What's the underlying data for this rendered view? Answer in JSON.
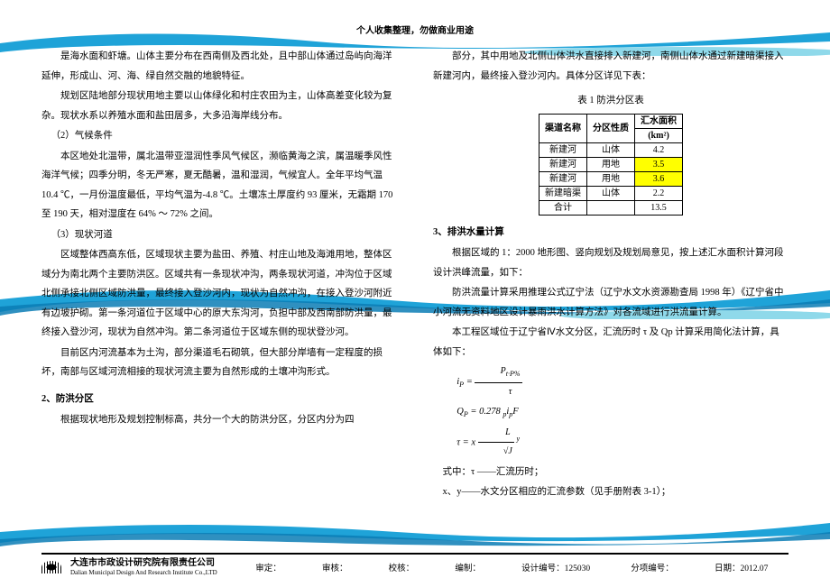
{
  "header": "个人收集整理，勿做商业用途",
  "left": {
    "p1": "是海水面和虾塘。山体主要分布在西南侧及西北处，且中部山体通过岛屿向海洋延伸，形成山、河、海、绿自然交融的地貌特征。",
    "p2": "规划区陆地部分现状用地主要以山体绿化和村庄农田为主，山体高差变化较为复杂。现状水系以养殖水面和盐田居多，大多沿海岸线分布。",
    "s2": "（2）气候条件",
    "p3": "本区地处北温带，属北温带亚湿润性季风气候区，濒临黄海之滨，属温暖季风性海洋气候；四季分明，冬无严寒，夏无酷暑，温和湿润，气候宜人。全年平均气温 10.4 ℃，一月份温度最低，平均气温为-4.8 ℃。土壤冻土厚度约 93 厘米，无霜期 170 至 190 天，相对湿度在 64% ～ 72% 之间。",
    "s3": "（3）现状河道",
    "p4": "区域整体西高东低，区域现状主要为盐田、养殖、村庄山地及海滩用地，整体区域分为南北两个主要防洪区。区域共有一条现状冲沟，两条现状河道，冲沟位于区域北侧承接北侧区域防洪量，最终接入登沙河内，现状为自然冲沟，在接入登沙河附近有边坡护砌。第一条河道位于区域中心的原大东沟河，负担中部及西南部防洪量，最终接入登沙河，现状为自然冲沟。第二条河道位于区域东侧的现状登沙河。",
    "p5": "目前区内河流基本为土沟，部分渠道毛石砌筑，但大部分岸墙有一定程度的损坏，南部与区域河流相接的现状河流主要为自然形成的土壤冲沟形式。",
    "h2": "2、防洪分区",
    "p6": "根据现状地形及规划控制标高，共分一个大的防洪分区，分区内分为四"
  },
  "right": {
    "p1": "部分，其中用地及北侧山体洪水直接排入新建河，南侧山体水通过新建暗渠接入新建河内，最终接入登沙河内。具体分区详见下表：",
    "tcaption": "表 1 防洪分区表",
    "th1": "渠道名称",
    "th2": "分区性质",
    "th3": "汇水面积",
    "th3u": "(km²)",
    "rows": [
      [
        "新建河",
        "山体",
        "4.2",
        ""
      ],
      [
        "新建河",
        "用地",
        "3.5",
        "hl1"
      ],
      [
        "新建河",
        "用地",
        "3.6",
        "hl2"
      ],
      [
        "新建暗渠",
        "山体",
        "2.2",
        ""
      ],
      [
        "合计",
        "",
        "13.5",
        ""
      ]
    ],
    "h3": "3、排洪水量计算",
    "p2": "根据区域的 1：2000 地形图、竖向规划及规划局意见，按上述汇水面积计算河段设计洪峰流量，如下：",
    "p3": "防洪流量计算采用推理公式辽宁法（辽宁水文水资源勘查局 1998 年）《辽宁省中小河流无资料地区设计暴雨洪水计算方法》对各流域进行洪流量计算。",
    "p4": "本工程区域位于辽宁省Ⅳ水文分区，汇流历时 τ 及 Qp 计算采用简化法计算，具体如下：",
    "f1a": "i",
    "f1b": "P",
    "f1c": "P",
    "f1d": "t·P%",
    "f2": "Q",
    "f2s": "P",
    "f2r": "= 0.278 ",
    "f2i": "i",
    "f2p": "p",
    "f2F": "F",
    "f3a": "τ = x",
    "f3L": "L",
    "f3J": "√J",
    "f3y": "y",
    "p5": "式中：τ ——汇流历时；",
    "p6": "x、y——水文分区相应的汇流参数（见手册附表 3-1）；"
  },
  "footer": {
    "company_cn": "大连市市政设计研究院有限责任公司",
    "company_en": "Dalian Municipal Design And Research Institute Co.,LTD",
    "s1": "审定：",
    "s2": "审核：",
    "s3": "校核：",
    "s4": "编制：",
    "s5": "设计编号：125030",
    "s6": "分项编号：",
    "s7": "日期：2012.07"
  },
  "waves": {
    "colors": [
      "#1fa3d8",
      "#0b7db5",
      "#47c6e0",
      "#8fd9ea"
    ]
  }
}
